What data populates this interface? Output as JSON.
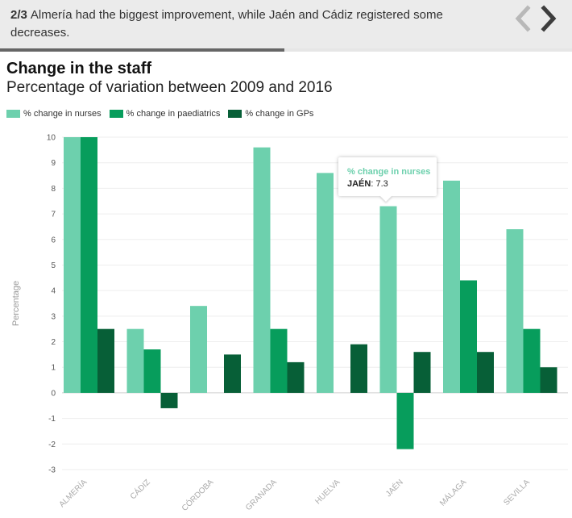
{
  "header": {
    "step": "2/3",
    "text": "Almería had the biggest improvement, while Jaén and Cádiz registered some decreases.",
    "progress": 0.497,
    "prev_icon": "chevron-left-icon",
    "next_icon": "chevron-right-icon"
  },
  "colors": {
    "nurses": "#6dd0ad",
    "paediatrics": "#079d5c",
    "gps": "#075f37",
    "prev_arrow": "#b8b8b8",
    "next_arrow": "#3d3d3d"
  },
  "chart_data": {
    "type": "bar",
    "title": "Change in the staff",
    "subtitle": "Percentage of variation between 2009 and 2016",
    "ylabel": "Percentage",
    "xlabel": "",
    "ylim": [
      -3,
      10
    ],
    "yticks": [
      10,
      9,
      8,
      7,
      6,
      5,
      4,
      3,
      2,
      1,
      0,
      -1,
      -2,
      -3
    ],
    "grid": true,
    "legend_position": "top-left",
    "categories": [
      "ALMERÍA",
      "CÁDIZ",
      "CÓRDOBA",
      "GRANADA",
      "HUELVA",
      "JAÉN",
      "MÁLAGA",
      "SEVILLA"
    ],
    "series": [
      {
        "name": "% change in nurses",
        "color": "#6dd0ad",
        "values": [
          10,
          2.5,
          3.4,
          9.6,
          8.6,
          7.3,
          8.3,
          6.4
        ]
      },
      {
        "name": "% change in paediatrics",
        "color": "#079d5c",
        "values": [
          10,
          1.7,
          0,
          2.5,
          0,
          -2.2,
          4.4,
          2.5
        ]
      },
      {
        "name": "% change in GPs",
        "color": "#075f37",
        "values": [
          2.5,
          -0.6,
          1.5,
          1.2,
          1.9,
          1.6,
          1.6,
          1.0
        ]
      }
    ]
  },
  "tooltip": {
    "series": "% change in nurses",
    "category": "JAÉN",
    "value": "7.3"
  }
}
